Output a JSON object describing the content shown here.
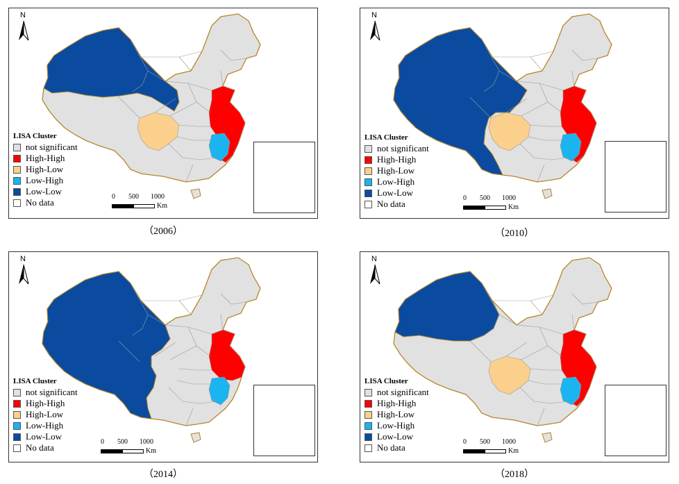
{
  "legend": {
    "title": "LISA Cluster",
    "items": [
      {
        "label": "not significant",
        "color": "#e1e1e1"
      },
      {
        "label": "High-High",
        "color": "#ff0000"
      },
      {
        "label": "High-Low",
        "color": "#fad08c"
      },
      {
        "label": "Low-High",
        "color": "#1ab4f0"
      },
      {
        "label": "Low-Low",
        "color": "#0a4ba0"
      },
      {
        "label": "No data",
        "color": "#ffffff"
      }
    ]
  },
  "north_label": "N",
  "scale_bar": {
    "ticks": [
      "0",
      "500",
      "1000"
    ],
    "unit": "Km"
  },
  "colors": {
    "border": "#b5852a",
    "inner_border": "#999999"
  },
  "panels": [
    {
      "caption": "（2006）",
      "low_low": "northwest",
      "high_low_sichuan": true,
      "low_high": "jiangxi",
      "high_high": "east-with-fujian"
    },
    {
      "caption": "（2010）",
      "low_low": "west-and-yunnan",
      "high_low_sichuan": true,
      "low_high": "jiangxi",
      "high_high": "east-with-fujian"
    },
    {
      "caption": "（2014）",
      "low_low": "west-and-yunnan",
      "high_low_sichuan": false,
      "low_high": "jiangxi",
      "high_high": "east-coast"
    },
    {
      "caption": "（2018）",
      "low_low": "xinjiang",
      "high_low_sichuan": true,
      "low_high": "jiangxi",
      "high_high": "east-with-fujian"
    }
  ]
}
